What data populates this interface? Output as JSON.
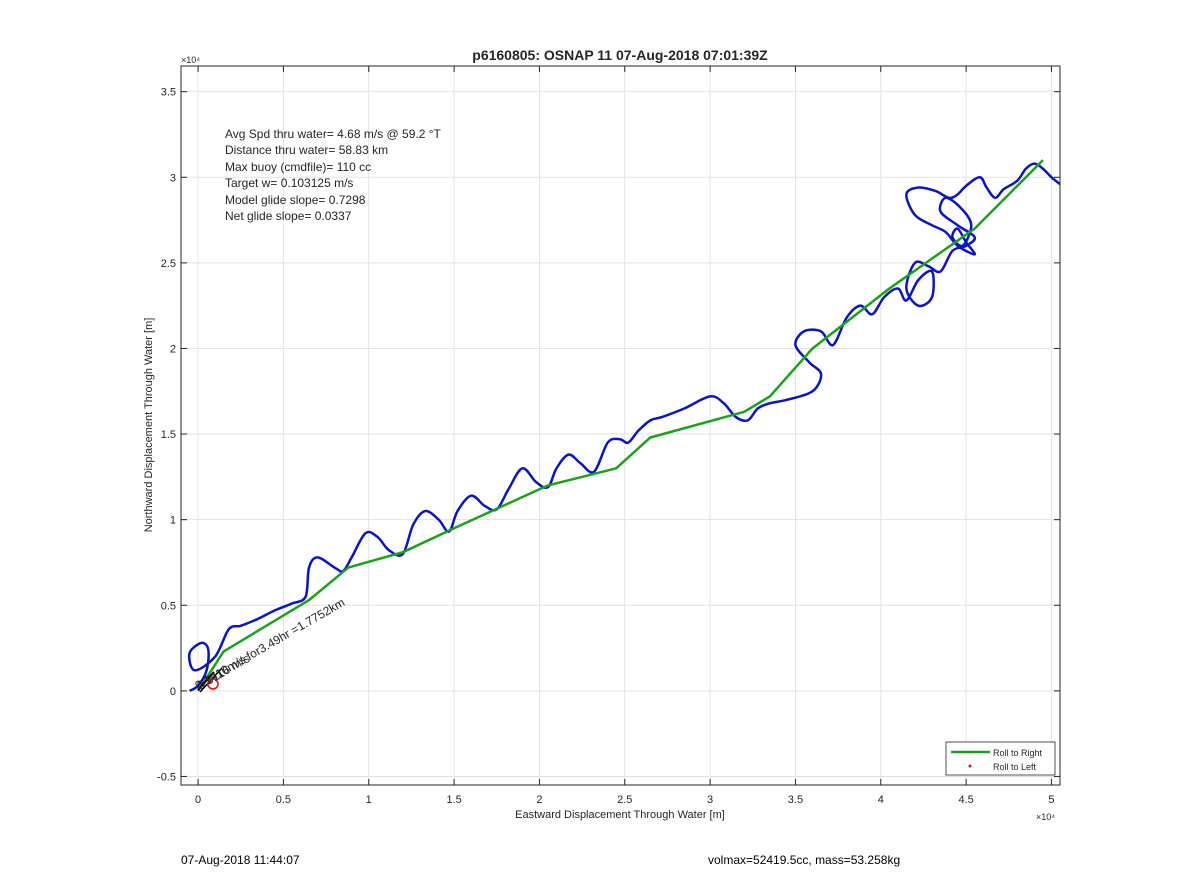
{
  "footer": {
    "left": "07-Aug-2018 11:44:07",
    "right": "volmax=52419.5cc, mass=53.258kg"
  },
  "chart_data": {
    "type": "line",
    "title": "p6160805: OSNAP 11 07-Aug-2018 07:01:39Z",
    "xlabel": "Eastward Displacement Through Water [m]",
    "ylabel": "Northward Displacement Through Water [m]",
    "x_exponent_label": "×10⁴",
    "y_exponent_label": "×10⁴",
    "xlim": [
      -0.1,
      5.05
    ],
    "ylim": [
      -0.55,
      3.65
    ],
    "xticks": [
      0,
      0.5,
      1,
      1.5,
      2,
      2.5,
      3,
      3.5,
      4,
      4.5,
      5
    ],
    "xtick_labels": [
      "0",
      "0.5",
      "1",
      "1.5",
      "2",
      "2.5",
      "3",
      "3.5",
      "4",
      "4.5",
      "5"
    ],
    "yticks": [
      -0.5,
      0,
      0.5,
      1,
      1.5,
      2,
      2.5,
      3,
      3.5
    ],
    "ytick_labels": [
      "-0.5",
      "0",
      "0.5",
      "1",
      "1.5",
      "2",
      "2.5",
      "3",
      "3.5"
    ],
    "grid": true,
    "legend_placement": "bottom-right",
    "legend": [
      {
        "label": "Roll to Right",
        "color": "#1aa31a",
        "style": "line"
      },
      {
        "label": "Roll to Left",
        "color": "#e01010",
        "style": "dot"
      }
    ],
    "annotations": [
      "Avg Spd thru water=  4.68 m/s @  59.2 °T",
      "Distance thru water= 58.83 km",
      "Max buoy (cmdfile)= 110 cc",
      "Target w= 0.103125 m/s",
      "Model glide slope= 0.7298",
      "Net glide slope= 0.0337"
    ],
    "current_label": "0.1410m/s for3.49hr =1.7752km",
    "current_label_overlap": "0.5116 m/s",
    "series": [
      {
        "name": "Roll to Right",
        "color": "#1aa31a",
        "x": [
          0.0,
          0.15,
          0.65,
          0.88,
          1.2,
          1.5,
          2.05,
          2.45,
          2.65,
          3.2,
          3.35,
          3.6,
          4.05,
          4.55,
          4.95
        ],
        "y": [
          0.0,
          0.23,
          0.53,
          0.72,
          0.81,
          0.95,
          1.2,
          1.3,
          1.48,
          1.63,
          1.72,
          2.0,
          2.35,
          2.7,
          3.1
        ]
      },
      {
        "name": "",
        "color": "#0a14c8",
        "x": [
          -0.05,
          0.0,
          0.05,
          0.06,
          0.02,
          -0.05,
          -0.02,
          0.1,
          0.18,
          0.25,
          0.35,
          0.45,
          0.55,
          0.63,
          0.65,
          0.7,
          0.8,
          0.85,
          0.9,
          0.98,
          1.05,
          1.12,
          1.2,
          1.26,
          1.33,
          1.41,
          1.47,
          1.52,
          1.6,
          1.68,
          1.75,
          1.82,
          1.9,
          1.98,
          2.05,
          2.1,
          2.17,
          2.24,
          2.32,
          2.4,
          2.47,
          2.52,
          2.58,
          2.65,
          2.72,
          2.85,
          3.0,
          3.08,
          3.15,
          3.22,
          3.28,
          3.35,
          3.45,
          3.6,
          3.65,
          3.58,
          3.5,
          3.55,
          3.65,
          3.72,
          3.8,
          3.88,
          3.95,
          4.02,
          4.1,
          4.15,
          4.22,
          4.3,
          4.3,
          4.22,
          4.15,
          4.2,
          4.28,
          4.35,
          4.42,
          4.5,
          4.55,
          4.45,
          4.35,
          4.38,
          4.47,
          4.53,
          4.48,
          4.42,
          4.45,
          4.5,
          4.55,
          4.45,
          4.38,
          4.3,
          4.2,
          4.15,
          4.22,
          4.32,
          4.4,
          4.45,
          4.5,
          4.58,
          4.62,
          4.67,
          4.72,
          4.8,
          4.85,
          4.9,
          4.95,
          5.0,
          5.05
        ],
        "y": [
          0.0,
          0.03,
          0.12,
          0.24,
          0.28,
          0.22,
          0.12,
          0.2,
          0.36,
          0.38,
          0.42,
          0.47,
          0.51,
          0.55,
          0.72,
          0.78,
          0.72,
          0.7,
          0.78,
          0.92,
          0.9,
          0.82,
          0.8,
          0.97,
          1.05,
          1.0,
          0.93,
          1.05,
          1.14,
          1.08,
          1.06,
          1.18,
          1.3,
          1.22,
          1.19,
          1.3,
          1.38,
          1.33,
          1.28,
          1.45,
          1.47,
          1.45,
          1.52,
          1.58,
          1.6,
          1.65,
          1.72,
          1.68,
          1.6,
          1.58,
          1.65,
          1.68,
          1.7,
          1.75,
          1.85,
          1.92,
          2.02,
          2.1,
          2.1,
          2.02,
          2.18,
          2.25,
          2.2,
          2.3,
          2.35,
          2.28,
          2.4,
          2.45,
          2.3,
          2.25,
          2.35,
          2.5,
          2.48,
          2.45,
          2.57,
          2.6,
          2.65,
          2.72,
          2.8,
          2.88,
          2.82,
          2.72,
          2.6,
          2.65,
          2.7,
          2.62,
          2.55,
          2.6,
          2.68,
          2.72,
          2.78,
          2.9,
          2.94,
          2.92,
          2.88,
          2.9,
          2.95,
          3.0,
          2.94,
          2.88,
          2.93,
          2.98,
          3.05,
          3.08,
          3.05,
          3.0,
          2.96
        ]
      }
    ]
  }
}
